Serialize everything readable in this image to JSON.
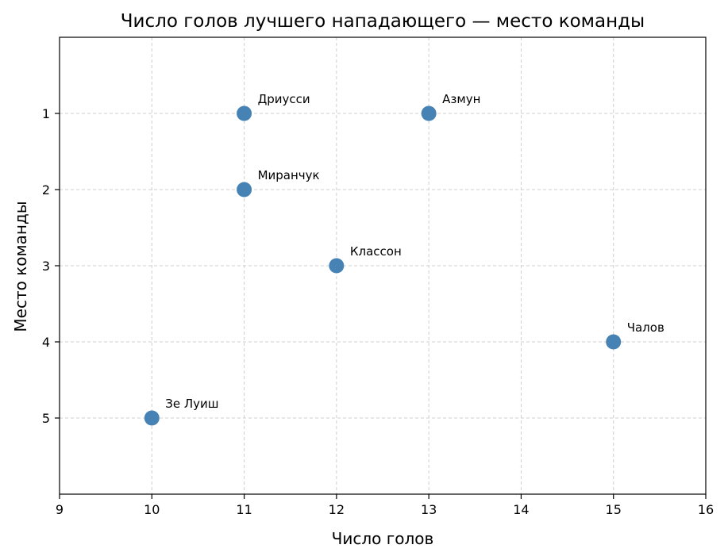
{
  "chart_data": {
    "type": "scatter",
    "title": "Число голов лучшего нападающего — место команды",
    "xlabel": "Число голов",
    "ylabel": "Место команды",
    "xlim": [
      9,
      16
    ],
    "ylim": [
      6,
      0
    ],
    "y_inverted": true,
    "xticks": [
      9,
      10,
      11,
      12,
      13,
      14,
      15,
      16
    ],
    "yticks": [
      1,
      2,
      3,
      4,
      5
    ],
    "grid": true,
    "point_color": "#4682b4",
    "points": [
      {
        "label": "Дриусси",
        "x": 11,
        "y": 1
      },
      {
        "label": "Азмун",
        "x": 13,
        "y": 1
      },
      {
        "label": "Миранчук",
        "x": 11,
        "y": 2
      },
      {
        "label": "Классон",
        "x": 12,
        "y": 3
      },
      {
        "label": "Чалов",
        "x": 15,
        "y": 4
      },
      {
        "label": "Зе Луиш",
        "x": 10,
        "y": 5
      }
    ]
  }
}
